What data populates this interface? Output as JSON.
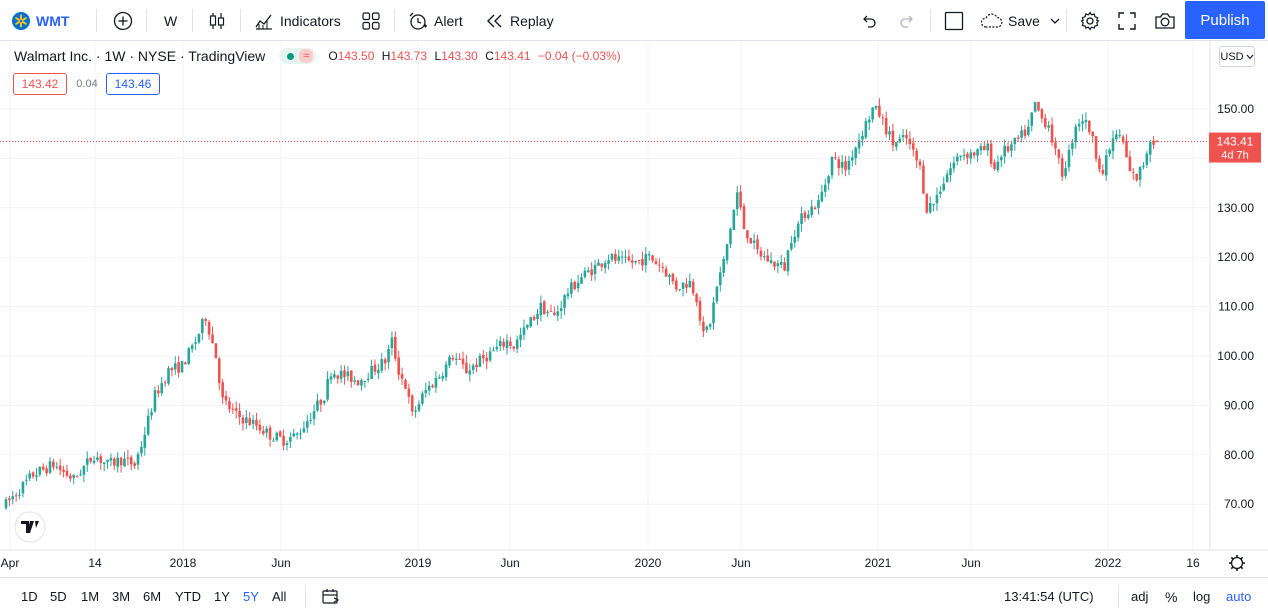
{
  "toolbar": {
    "symbol": "WMT",
    "interval": "W",
    "indicators_label": "Indicators",
    "alert_label": "Alert",
    "replay_label": "Replay",
    "save_label": "Save",
    "publish_label": "Publish"
  },
  "legend": {
    "title": "Walmart Inc. · 1W · NYSE · TradingView",
    "open_label": "O",
    "open": "143.50",
    "high_label": "H",
    "high": "143.73",
    "low_label": "L",
    "low": "143.30",
    "close_label": "C",
    "close": "143.41",
    "change": "−0.04 (−0.03%)",
    "bid": "143.42",
    "spread": "0.04",
    "ask": "143.46"
  },
  "price_axis": {
    "currency": "USD",
    "ticks": [
      "150.00",
      "140.00",
      "130.00",
      "120.00",
      "110.00",
      "100.00",
      "90.00",
      "80.00",
      "70.00"
    ],
    "last_price": "143.41",
    "countdown": "4d 7h"
  },
  "time_axis": {
    "ticks": [
      "Apr",
      "14",
      "2018",
      "Jun",
      "2019",
      "Jun",
      "2020",
      "Jun",
      "2021",
      "Jun",
      "2022",
      "16"
    ]
  },
  "bottom": {
    "ranges": [
      "1D",
      "5D",
      "1M",
      "3M",
      "6M",
      "YTD",
      "1Y",
      "5Y",
      "All"
    ],
    "active_range": "5Y",
    "clock": "13:41:54 (UTC)",
    "adj": "adj",
    "percent": "%",
    "log": "log",
    "auto": "auto"
  },
  "colors": {
    "up": "#26a69a",
    "down": "#ef5350",
    "accent": "#2962ff"
  },
  "chart_data": {
    "type": "candlestick",
    "title": "Walmart Inc. · 1W · NYSE",
    "ylim": [
      63,
      157
    ],
    "grid": true,
    "anchors": [
      [
        0,
        70
      ],
      [
        8,
        76
      ],
      [
        14,
        78
      ],
      [
        20,
        75
      ],
      [
        26,
        80
      ],
      [
        30,
        78
      ],
      [
        34,
        79
      ],
      [
        38,
        78
      ],
      [
        40,
        82
      ],
      [
        44,
        92
      ],
      [
        48,
        97
      ],
      [
        52,
        98
      ],
      [
        56,
        103
      ],
      [
        59,
        108
      ],
      [
        62,
        100
      ],
      [
        64,
        91
      ],
      [
        68,
        88
      ],
      [
        74,
        86
      ],
      [
        78,
        84
      ],
      [
        82,
        83
      ],
      [
        86,
        84
      ],
      [
        90,
        88
      ],
      [
        94,
        92
      ],
      [
        96,
        97
      ],
      [
        100,
        96
      ],
      [
        104,
        95
      ],
      [
        108,
        97
      ],
      [
        112,
        99
      ],
      [
        114,
        103
      ],
      [
        116,
        97
      ],
      [
        118,
        94
      ],
      [
        120,
        88
      ],
      [
        124,
        93
      ],
      [
        128,
        96
      ],
      [
        132,
        100
      ],
      [
        136,
        97
      ],
      [
        140,
        99
      ],
      [
        144,
        101
      ],
      [
        148,
        103
      ],
      [
        150,
        102
      ],
      [
        154,
        106
      ],
      [
        158,
        110
      ],
      [
        162,
        108
      ],
      [
        166,
        113
      ],
      [
        170,
        116
      ],
      [
        174,
        118
      ],
      [
        178,
        120
      ],
      [
        182,
        119
      ],
      [
        186,
        119
      ],
      [
        190,
        120
      ],
      [
        194,
        118
      ],
      [
        198,
        114
      ],
      [
        202,
        115
      ],
      [
        204,
        112
      ],
      [
        206,
        104
      ],
      [
        208,
        107
      ],
      [
        210,
        114
      ],
      [
        212,
        119
      ],
      [
        214,
        126
      ],
      [
        216,
        133
      ],
      [
        218,
        126
      ],
      [
        222,
        121
      ],
      [
        226,
        119
      ],
      [
        230,
        118
      ],
      [
        232,
        124
      ],
      [
        236,
        129
      ],
      [
        240,
        131
      ],
      [
        242,
        135
      ],
      [
        244,
        140
      ],
      [
        248,
        138
      ],
      [
        252,
        144
      ],
      [
        254,
        147
      ],
      [
        256,
        150
      ],
      [
        258,
        149
      ],
      [
        262,
        143
      ],
      [
        266,
        144
      ],
      [
        270,
        138
      ],
      [
        272,
        130
      ],
      [
        274,
        131
      ],
      [
        278,
        137
      ],
      [
        282,
        141
      ],
      [
        286,
        141
      ],
      [
        290,
        142
      ],
      [
        292,
        138
      ],
      [
        294,
        141
      ],
      [
        298,
        143
      ],
      [
        302,
        146
      ],
      [
        304,
        151
      ],
      [
        306,
        148
      ],
      [
        308,
        147
      ],
      [
        310,
        141
      ],
      [
        312,
        137
      ],
      [
        314,
        141
      ],
      [
        316,
        147
      ],
      [
        318,
        148
      ],
      [
        320,
        146
      ],
      [
        322,
        141
      ],
      [
        324,
        137
      ],
      [
        326,
        142
      ],
      [
        328,
        145
      ],
      [
        330,
        143
      ],
      [
        332,
        137
      ],
      [
        334,
        136
      ],
      [
        336,
        139
      ],
      [
        338,
        144
      ],
      [
        340,
        143.41
      ]
    ],
    "last": {
      "open": 143.5,
      "high": 143.73,
      "low": 143.3,
      "close": 143.41
    }
  }
}
